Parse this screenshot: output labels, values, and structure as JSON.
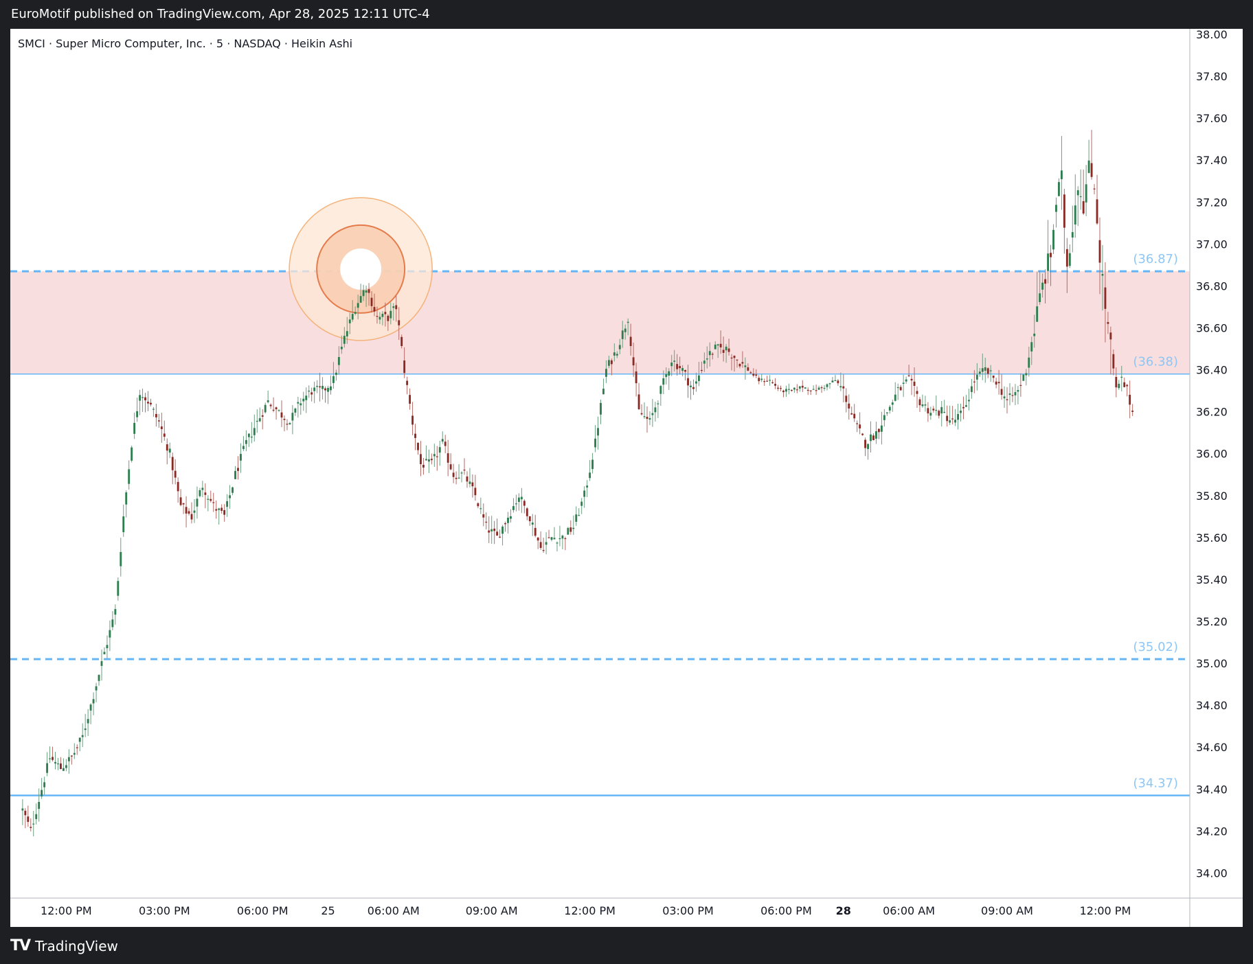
{
  "header": {
    "published_line": "EuroMotif published on TradingView.com, Apr 28, 2025 12:11 UTC-4"
  },
  "footer": {
    "brand_label": "TradingView"
  },
  "chart_data": {
    "type": "candlestick",
    "legend": "SMCI · Super Micro Computer, Inc. · 5 · NASDAQ · Heikin Ashi",
    "ylim": [
      33.9,
      38.0
    ],
    "y_ticks": [
      "38.00",
      "37.80",
      "37.60",
      "37.40",
      "37.20",
      "37.00",
      "36.80",
      "36.60",
      "36.40",
      "36.20",
      "36.00",
      "35.80",
      "35.60",
      "35.40",
      "35.20",
      "35.00",
      "34.80",
      "34.60",
      "34.40",
      "34.20",
      "34.00"
    ],
    "x_ticks": [
      {
        "label": "12:00 PM",
        "i": 16,
        "bold": false
      },
      {
        "label": "03:00 PM",
        "i": 52,
        "bold": false
      },
      {
        "label": "06:00 PM",
        "i": 88,
        "bold": false
      },
      {
        "label": "25",
        "i": 112,
        "bold": false
      },
      {
        "label": "06:00 AM",
        "i": 136,
        "bold": false
      },
      {
        "label": "09:00 AM",
        "i": 172,
        "bold": false
      },
      {
        "label": "12:00 PM",
        "i": 208,
        "bold": false
      },
      {
        "label": "03:00 PM",
        "i": 244,
        "bold": false
      },
      {
        "label": "06:00 PM",
        "i": 280,
        "bold": false
      },
      {
        "label": "28",
        "i": 301,
        "bold": true
      },
      {
        "label": "06:00 AM",
        "i": 325,
        "bold": false
      },
      {
        "label": "09:00 AM",
        "i": 361,
        "bold": false
      },
      {
        "label": "12:00 PM",
        "i": 397,
        "bold": false
      }
    ],
    "x_domain": [
      -4.5,
      428
    ],
    "zone": {
      "top": 36.87,
      "bottom": 36.38,
      "color": "#f8dede"
    },
    "levels": [
      {
        "value": 36.87,
        "label": "(36.87)",
        "style": "dashed"
      },
      {
        "value": 36.38,
        "label": "(36.38)",
        "style": "solid-thin"
      },
      {
        "value": 35.02,
        "label": "(35.02)",
        "style": "dashed"
      },
      {
        "value": 34.37,
        "label": "(34.37)",
        "style": "solid"
      }
    ],
    "marker": {
      "i": 124,
      "value": 36.9
    },
    "colors": {
      "up": "#2e7d4f",
      "down": "#8b2a24",
      "up_wick": "#6a9e80",
      "down_wick": "#b36a64",
      "level": "#64b5f6",
      "level_text": "#8ec6f5"
    },
    "keypoints": [
      [
        0,
        34.3
      ],
      [
        3,
        34.2
      ],
      [
        6,
        34.35
      ],
      [
        10,
        34.55
      ],
      [
        14,
        34.5
      ],
      [
        18,
        34.55
      ],
      [
        22,
        34.65
      ],
      [
        26,
        34.85
      ],
      [
        30,
        35.05
      ],
      [
        34,
        35.25
      ],
      [
        37,
        35.7
      ],
      [
        40,
        36.05
      ],
      [
        43,
        36.3
      ],
      [
        46,
        36.25
      ],
      [
        50,
        36.15
      ],
      [
        54,
        36.0
      ],
      [
        58,
        35.75
      ],
      [
        62,
        35.7
      ],
      [
        66,
        35.85
      ],
      [
        70,
        35.75
      ],
      [
        74,
        35.7
      ],
      [
        78,
        35.9
      ],
      [
        82,
        36.05
      ],
      [
        86,
        36.15
      ],
      [
        90,
        36.25
      ],
      [
        94,
        36.2
      ],
      [
        98,
        36.15
      ],
      [
        102,
        36.25
      ],
      [
        106,
        36.3
      ],
      [
        110,
        36.3
      ],
      [
        114,
        36.35
      ],
      [
        118,
        36.55
      ],
      [
        122,
        36.7
      ],
      [
        126,
        36.8
      ],
      [
        130,
        36.65
      ],
      [
        134,
        36.65
      ],
      [
        137,
        36.7
      ],
      [
        140,
        36.4
      ],
      [
        143,
        36.15
      ],
      [
        146,
        35.95
      ],
      [
        150,
        35.95
      ],
      [
        154,
        36.05
      ],
      [
        158,
        35.9
      ],
      [
        162,
        35.9
      ],
      [
        166,
        35.8
      ],
      [
        170,
        35.65
      ],
      [
        174,
        35.6
      ],
      [
        178,
        35.7
      ],
      [
        182,
        35.8
      ],
      [
        186,
        35.7
      ],
      [
        190,
        35.55
      ],
      [
        194,
        35.6
      ],
      [
        198,
        35.6
      ],
      [
        202,
        35.65
      ],
      [
        206,
        35.8
      ],
      [
        210,
        36.05
      ],
      [
        214,
        36.4
      ],
      [
        218,
        36.5
      ],
      [
        222,
        36.65
      ],
      [
        226,
        36.2
      ],
      [
        230,
        36.15
      ],
      [
        234,
        36.3
      ],
      [
        238,
        36.45
      ],
      [
        242,
        36.4
      ],
      [
        246,
        36.3
      ],
      [
        250,
        36.45
      ],
      [
        254,
        36.5
      ],
      [
        258,
        36.5
      ],
      [
        262,
        36.45
      ],
      [
        266,
        36.4
      ],
      [
        270,
        36.35
      ],
      [
        274,
        36.35
      ],
      [
        278,
        36.3
      ],
      [
        282,
        36.3
      ],
      [
        286,
        36.32
      ],
      [
        290,
        36.3
      ],
      [
        294,
        36.32
      ],
      [
        298,
        36.35
      ],
      [
        301,
        36.3
      ],
      [
        305,
        36.15
      ],
      [
        309,
        36.05
      ],
      [
        313,
        36.1
      ],
      [
        317,
        36.2
      ],
      [
        321,
        36.3
      ],
      [
        325,
        36.35
      ],
      [
        329,
        36.25
      ],
      [
        333,
        36.2
      ],
      [
        337,
        36.2
      ],
      [
        341,
        36.15
      ],
      [
        345,
        36.2
      ],
      [
        349,
        36.35
      ],
      [
        353,
        36.4
      ],
      [
        357,
        36.35
      ],
      [
        361,
        36.25
      ],
      [
        365,
        36.3
      ],
      [
        368,
        36.4
      ],
      [
        371,
        36.6
      ],
      [
        374,
        36.8
      ],
      [
        377,
        36.95
      ],
      [
        379,
        37.2
      ],
      [
        381,
        37.3
      ],
      [
        383,
        36.9
      ],
      [
        385,
        37.1
      ],
      [
        387,
        37.3
      ],
      [
        389,
        37.2
      ],
      [
        391,
        37.35
      ],
      [
        393,
        37.3
      ],
      [
        395,
        36.95
      ],
      [
        397,
        36.7
      ],
      [
        399,
        36.5
      ],
      [
        401,
        36.3
      ],
      [
        403,
        36.35
      ],
      [
        405,
        36.3
      ],
      [
        407,
        36.2
      ]
    ]
  }
}
